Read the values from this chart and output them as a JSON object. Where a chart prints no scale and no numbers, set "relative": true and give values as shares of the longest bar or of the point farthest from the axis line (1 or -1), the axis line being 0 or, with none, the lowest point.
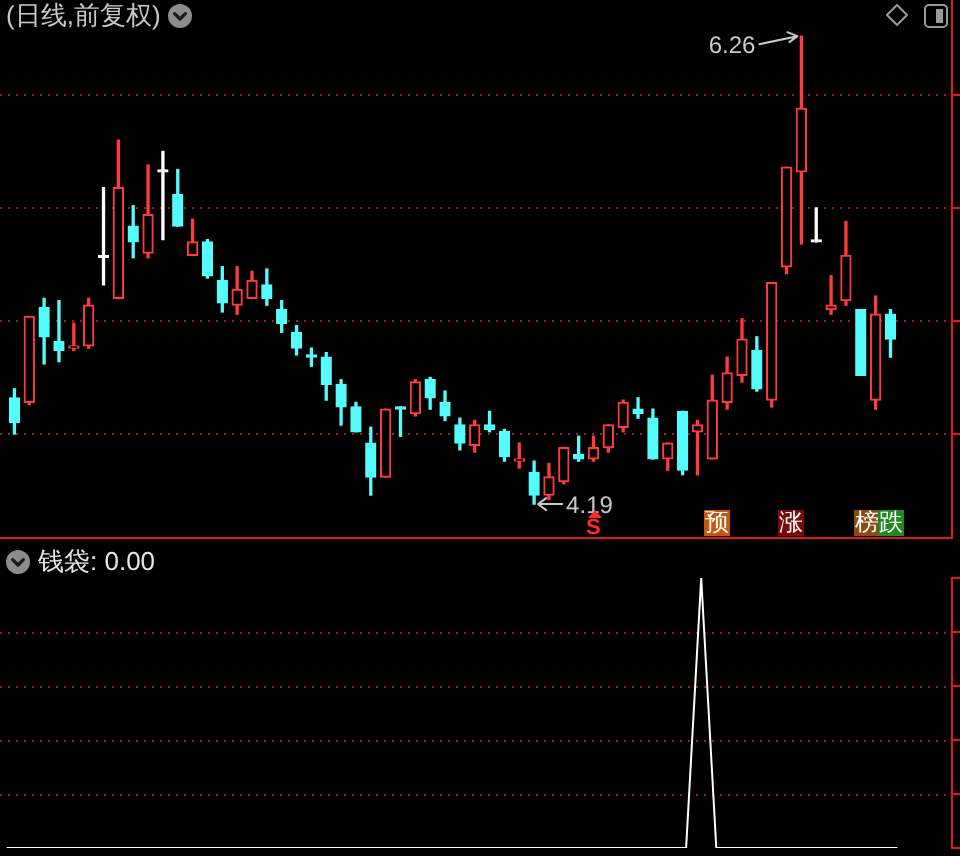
{
  "chart_data": [
    {
      "type": "candlestick",
      "title": "(日线,前复权)",
      "categories": [
        null,
        null,
        null,
        null,
        null,
        null,
        null,
        null,
        null,
        null,
        null,
        null,
        null,
        null,
        null,
        null,
        null,
        null,
        null,
        null,
        null,
        null,
        null,
        null,
        null,
        null,
        null,
        null,
        null,
        null,
        null,
        null,
        null,
        null,
        null,
        null,
        null,
        null,
        null,
        null,
        null,
        null,
        null,
        null,
        null,
        null,
        null,
        null,
        null,
        null,
        null,
        null,
        null,
        null,
        null,
        null,
        null,
        null,
        null,
        null
      ],
      "ohlc": [
        [
          4.66,
          4.7,
          4.5,
          4.55
        ],
        [
          4.64,
          5.02,
          4.63,
          5.02
        ],
        [
          5.06,
          5.1,
          4.81,
          4.93
        ],
        [
          4.91,
          5.09,
          4.82,
          4.87
        ],
        [
          4.88,
          4.99,
          4.87,
          4.89
        ],
        [
          4.89,
          5.1,
          4.88,
          5.07
        ],
        [
          5.28,
          5.59,
          5.16,
          5.28
        ],
        [
          5.1,
          5.8,
          5.1,
          5.59
        ],
        [
          5.42,
          5.51,
          5.28,
          5.35
        ],
        [
          5.3,
          5.69,
          5.28,
          5.47
        ],
        [
          5.66,
          5.75,
          5.36,
          5.66
        ],
        [
          5.56,
          5.67,
          5.42,
          5.42
        ],
        [
          5.29,
          5.45,
          5.29,
          5.35
        ],
        [
          5.35,
          5.36,
          5.19,
          5.2
        ],
        [
          5.18,
          5.24,
          5.04,
          5.08
        ],
        [
          5.07,
          5.24,
          5.03,
          5.14
        ],
        [
          5.1,
          5.22,
          5.1,
          5.18
        ],
        [
          5.16,
          5.23,
          5.07,
          5.1
        ],
        [
          5.05,
          5.09,
          4.95,
          4.99
        ],
        [
          4.95,
          4.98,
          4.85,
          4.88
        ],
        [
          4.85,
          4.88,
          4.8,
          4.84
        ],
        [
          4.84,
          4.86,
          4.65,
          4.72
        ],
        [
          4.72,
          4.74,
          4.54,
          4.62
        ],
        [
          4.62,
          4.64,
          4.51,
          4.51
        ],
        [
          4.46,
          4.53,
          4.23,
          4.31
        ],
        [
          4.31,
          4.61,
          4.31,
          4.61
        ],
        [
          4.62,
          4.62,
          4.49,
          4.61
        ],
        [
          4.59,
          4.74,
          4.58,
          4.73
        ],
        [
          4.74,
          4.75,
          4.61,
          4.66
        ],
        [
          4.64,
          4.69,
          4.56,
          4.58
        ],
        [
          4.54,
          4.57,
          4.43,
          4.46
        ],
        [
          4.45,
          4.56,
          4.42,
          4.54
        ],
        [
          4.54,
          4.6,
          4.51,
          4.52
        ],
        [
          4.51,
          4.52,
          4.38,
          4.4
        ],
        [
          4.38,
          4.46,
          4.35,
          4.39
        ],
        [
          4.33,
          4.38,
          4.19,
          4.23
        ],
        [
          4.23,
          4.37,
          4.21,
          4.31
        ],
        [
          4.29,
          4.44,
          4.28,
          4.44
        ],
        [
          4.41,
          4.49,
          4.38,
          4.39
        ],
        [
          4.39,
          4.49,
          4.38,
          4.44
        ],
        [
          4.44,
          4.54,
          4.42,
          4.54
        ],
        [
          4.53,
          4.65,
          4.51,
          4.64
        ],
        [
          4.61,
          4.66,
          4.57,
          4.59
        ],
        [
          4.57,
          4.61,
          4.39,
          4.39
        ],
        [
          4.39,
          4.46,
          4.34,
          4.46
        ],
        [
          4.6,
          4.6,
          4.32,
          4.34
        ],
        [
          4.51,
          4.56,
          4.32,
          4.54
        ],
        [
          4.39,
          4.76,
          4.39,
          4.65
        ],
        [
          4.64,
          4.84,
          4.61,
          4.77
        ],
        [
          4.76,
          5.01,
          4.73,
          4.92
        ],
        [
          4.87,
          4.93,
          4.69,
          4.7
        ],
        [
          4.65,
          5.17,
          4.62,
          5.17
        ],
        [
          5.24,
          5.68,
          5.21,
          5.68
        ],
        [
          5.66,
          6.26,
          5.34,
          5.94
        ],
        [
          5.35,
          5.5,
          5.35,
          5.35
        ],
        [
          5.05,
          5.2,
          5.03,
          5.07
        ],
        [
          5.09,
          5.44,
          5.07,
          5.29
        ],
        [
          5.05,
          5.05,
          4.76,
          4.76
        ],
        [
          4.65,
          5.11,
          4.61,
          5.03
        ],
        [
          5.03,
          5.05,
          4.84,
          4.92
        ]
      ],
      "colors": [
        "#54fcfc",
        "#ff3b3b",
        "#54fcfc",
        "#54fcfc",
        "#ff3b3b",
        "#ff3b3b",
        "#ffffff",
        "#ff3b3b",
        "#54fcfc",
        "#ff3b3b",
        "#ffffff",
        "#54fcfc",
        "#ff3b3b",
        "#54fcfc",
        "#54fcfc",
        "#ff3b3b",
        "#ff3b3b",
        "#54fcfc",
        "#54fcfc",
        "#54fcfc",
        "#54fcfc",
        "#54fcfc",
        "#54fcfc",
        "#54fcfc",
        "#54fcfc",
        "#ff3b3b",
        "#54fcfc",
        "#ff3b3b",
        "#54fcfc",
        "#54fcfc",
        "#54fcfc",
        "#ff3b3b",
        "#54fcfc",
        "#54fcfc",
        "#ff3b3b",
        "#54fcfc",
        "#ff3b3b",
        "#ff3b3b",
        "#54fcfc",
        "#ff3b3b",
        "#ff3b3b",
        "#ff3b3b",
        "#54fcfc",
        "#54fcfc",
        "#ff3b3b",
        "#54fcfc",
        "#ff3b3b",
        "#ff3b3b",
        "#ff3b3b",
        "#ff3b3b",
        "#54fcfc",
        "#ff3b3b",
        "#ff3b3b",
        "#ff3b3b",
        "#ffffff",
        "#ff3b3b",
        "#ff3b3b",
        "#54fcfc",
        "#ff3b3b",
        "#54fcfc"
      ],
      "ylim": [
        4.04,
        6.42
      ],
      "yticks": [
        {
          "value": 4.5,
          "label": null
        },
        {
          "value": 5.0,
          "label": null
        },
        {
          "value": 5.5,
          "label": null
        },
        {
          "value": 6.0,
          "label": null
        }
      ],
      "grid": "y",
      "tick_labels": false,
      "annotations": [
        "6.26",
        "4.19",
        "S",
        "预",
        "涨",
        "榜",
        "跌"
      ]
    },
    {
      "type": "line",
      "title": "钱袋: 0.00",
      "categories": [
        null,
        null,
        null,
        null,
        null,
        null,
        null,
        null,
        null,
        null,
        null,
        null,
        null,
        null,
        null,
        null,
        null,
        null,
        null,
        null,
        null,
        null,
        null,
        null,
        null,
        null,
        null,
        null,
        null,
        null,
        null,
        null,
        null,
        null,
        null,
        null,
        null,
        null,
        null,
        null,
        null,
        null,
        null,
        null,
        null,
        null,
        null,
        null,
        null,
        null,
        null,
        null,
        null,
        null,
        null,
        null,
        null,
        null,
        null,
        null
      ],
      "values": [
        0,
        0,
        0,
        0,
        0,
        0,
        0,
        0,
        0,
        0,
        0,
        0,
        0,
        0,
        0,
        0,
        0,
        0,
        0,
        0,
        0,
        0,
        0,
        0,
        0,
        0,
        0,
        0,
        0,
        0,
        0,
        0,
        0,
        0,
        0,
        0,
        0,
        0,
        0,
        0,
        0,
        0,
        0,
        0,
        0,
        0,
        1,
        0,
        0,
        0,
        0,
        0,
        0,
        0,
        0,
        0,
        0,
        0,
        0,
        0
      ],
      "color": "#ffffff",
      "relative": true,
      "ref_lines": [
        {
          "axis": "y",
          "value": 0.2,
          "color": "#a02020",
          "line_style": "dotted"
        },
        {
          "axis": "y",
          "value": 0.4,
          "color": "#a02020",
          "line_style": "dotted"
        },
        {
          "axis": "y",
          "value": 0.6,
          "color": "#a02020",
          "line_style": "dotted"
        },
        {
          "axis": "y",
          "value": 0.8,
          "color": "#a02020",
          "line_style": "dotted"
        }
      ],
      "tick_labels": false
    }
  ]
}
